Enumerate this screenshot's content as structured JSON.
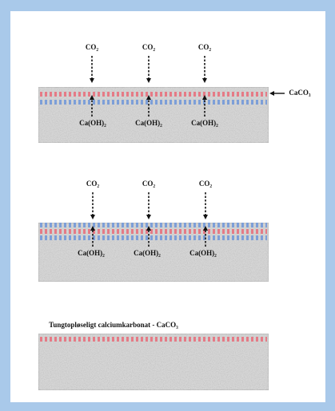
{
  "panels": [
    {
      "co2": [
        "CO₂",
        "CO₂",
        "CO₂"
      ],
      "hydroxide": [
        "Ca(OH)₂",
        "Ca(OH)₂",
        "Ca(OH)₂"
      ],
      "side_label": "CaCO₃"
    },
    {
      "co2": [
        "CO₂",
        "CO₂",
        "CO₂"
      ],
      "hydroxide": [
        "Ca(OH)₂",
        "Ca(OH)₂",
        "Ca(OH)₂"
      ]
    },
    {
      "title": "Tungtopløseligt calciumkarbonat - CaCO₃"
    }
  ]
}
